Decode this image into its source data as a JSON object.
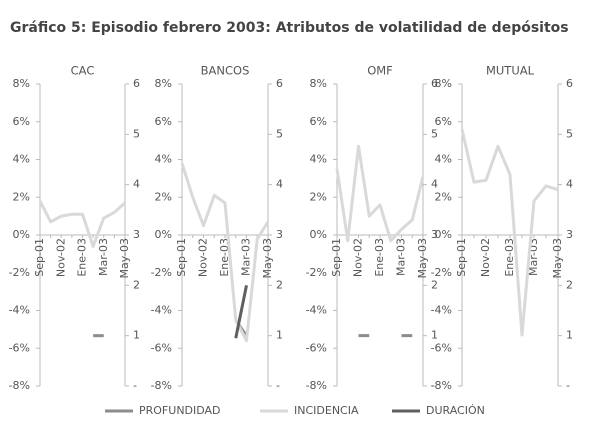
{
  "title": "Gráfico 5: Episodio febrero 2003: Atributos de volatilidad de depósitos",
  "chart_data": [
    {
      "type": "line",
      "title": "CAC",
      "categories": [
        "Sep-01",
        null,
        "Nov-02",
        null,
        "Ene-03",
        null,
        "Mar-03",
        null,
        "May-03"
      ],
      "series": [
        {
          "name": "PROFUNDIDAD",
          "color": "#8c8c8c",
          "axis": "y2",
          "values": [
            null,
            null,
            null,
            null,
            null,
            1,
            1,
            null,
            null
          ]
        },
        {
          "name": "INCIDENCIA",
          "color": "#d9d9d9",
          "values": [
            1.8,
            0.7,
            1.0,
            1.1,
            1.1,
            -0.6,
            0.9,
            1.2,
            1.7
          ]
        }
      ],
      "ylim": [
        -8,
        8
      ],
      "yticks": [
        {
          "value": -8,
          "label": "-8%"
        },
        {
          "value": -6,
          "label": "-6%"
        },
        {
          "value": -4,
          "label": "-4%"
        },
        {
          "value": -2,
          "label": "-2%"
        },
        {
          "value": 0,
          "label": "0%"
        },
        {
          "value": 2,
          "label": "2%"
        },
        {
          "value": 4,
          "label": "4%"
        },
        {
          "value": 6,
          "label": "6%"
        },
        {
          "value": 8,
          "label": "8%"
        }
      ],
      "y2lim": [
        0,
        6
      ],
      "y2ticks": [
        {
          "value": 0,
          "label": "-"
        },
        1,
        2,
        3,
        4,
        5,
        6
      ]
    },
    {
      "type": "line",
      "title": "BANCOS",
      "categories": [
        "Sep-01",
        null,
        "Nov-02",
        null,
        "Ene-03",
        null,
        "Mar-03",
        null,
        "May-03"
      ],
      "series": [
        {
          "name": "PROFUNDIDAD",
          "color": "#8c8c8c",
          "axis": "y2",
          "values": [
            null,
            null,
            null,
            null,
            null,
            1.3,
            1.0,
            null,
            null
          ]
        },
        {
          "name": "INCIDENCIA",
          "color": "#d9d9d9",
          "values": [
            3.8,
            2.0,
            0.5,
            2.1,
            1.7,
            -4.5,
            -5.6,
            -0.2,
            0.7
          ]
        },
        {
          "name": "DURACIÓN",
          "color": "#5f5f5f",
          "axis": "y2",
          "values": [
            null,
            null,
            null,
            null,
            null,
            0.95,
            2.0,
            null,
            null
          ]
        }
      ],
      "ylim": [
        -8,
        8
      ],
      "yticks": [
        {
          "value": -8,
          "label": "-8%"
        },
        {
          "value": -6,
          "label": "-6%"
        },
        {
          "value": -4,
          "label": "-4%"
        },
        {
          "value": -2,
          "label": "-2%"
        },
        {
          "value": 0,
          "label": "0%"
        },
        {
          "value": 2,
          "label": "2%"
        },
        {
          "value": 4,
          "label": "4%"
        },
        {
          "value": 6,
          "label": "6%"
        },
        {
          "value": 8,
          "label": "8%"
        }
      ],
      "y2lim": [
        0,
        6
      ],
      "y2ticks": [
        {
          "value": 0,
          "label": "-"
        },
        1,
        2,
        3,
        4,
        5,
        6
      ]
    },
    {
      "type": "line",
      "title": "OMF",
      "categories": [
        "Sep-01",
        null,
        "Nov-02",
        null,
        "Ene-03",
        null,
        "Mar-03",
        null,
        "May-03"
      ],
      "series": [
        {
          "name": "PROFUNDIDAD",
          "color": "#8c8c8c",
          "axis": "y2",
          "values": [
            null,
            null,
            1,
            1,
            null,
            null,
            1,
            1,
            null
          ]
        },
        {
          "name": "INCIDENCIA",
          "color": "#d9d9d9",
          "values": [
            3.5,
            -0.3,
            4.7,
            1.0,
            1.6,
            -0.3,
            0.3,
            0.8,
            3.1
          ]
        }
      ],
      "ylim": [
        -8,
        8
      ],
      "yticks": [
        {
          "value": -8,
          "label": "-8%"
        },
        {
          "value": -6,
          "label": "-6%"
        },
        {
          "value": -4,
          "label": "-4%"
        },
        {
          "value": -2,
          "label": "-2%"
        },
        {
          "value": 0,
          "label": "0%"
        },
        {
          "value": 2,
          "label": "2%"
        },
        {
          "value": 4,
          "label": "4%"
        },
        {
          "value": 6,
          "label": "6%"
        },
        {
          "value": 8,
          "label": "8%"
        }
      ],
      "y2lim": [
        0,
        6
      ],
      "y2ticks": [
        {
          "value": 0,
          "label": "-"
        },
        1,
        2,
        3,
        4,
        5,
        6
      ]
    },
    {
      "type": "line",
      "title": "MUTUAL",
      "categories": [
        "Sep-01",
        null,
        "Nov-02",
        null,
        "Ene-03",
        null,
        "Mar-03",
        null,
        "May-03"
      ],
      "series": [
        {
          "name": "INCIDENCIA",
          "color": "#d9d9d9",
          "values": [
            5.6,
            2.8,
            2.9,
            4.7,
            3.2,
            -5.3,
            1.8,
            2.6,
            2.4
          ]
        }
      ],
      "ylim": [
        -8,
        8
      ],
      "yticks": [
        {
          "value": -8,
          "label": "-8%"
        },
        {
          "value": -6,
          "label": "-6%"
        },
        {
          "value": -4,
          "label": "-4%"
        },
        {
          "value": -2,
          "label": "-2%"
        },
        {
          "value": 0,
          "label": "0%"
        },
        {
          "value": 2,
          "label": "2%"
        },
        {
          "value": 4,
          "label": "4%"
        },
        {
          "value": 6,
          "label": "6%"
        },
        {
          "value": 8,
          "label": "8%"
        }
      ],
      "y2lim": [
        0,
        6
      ],
      "y2ticks": [
        {
          "value": 0,
          "label": "-"
        },
        1,
        2,
        3,
        4,
        5,
        6
      ]
    }
  ]
}
